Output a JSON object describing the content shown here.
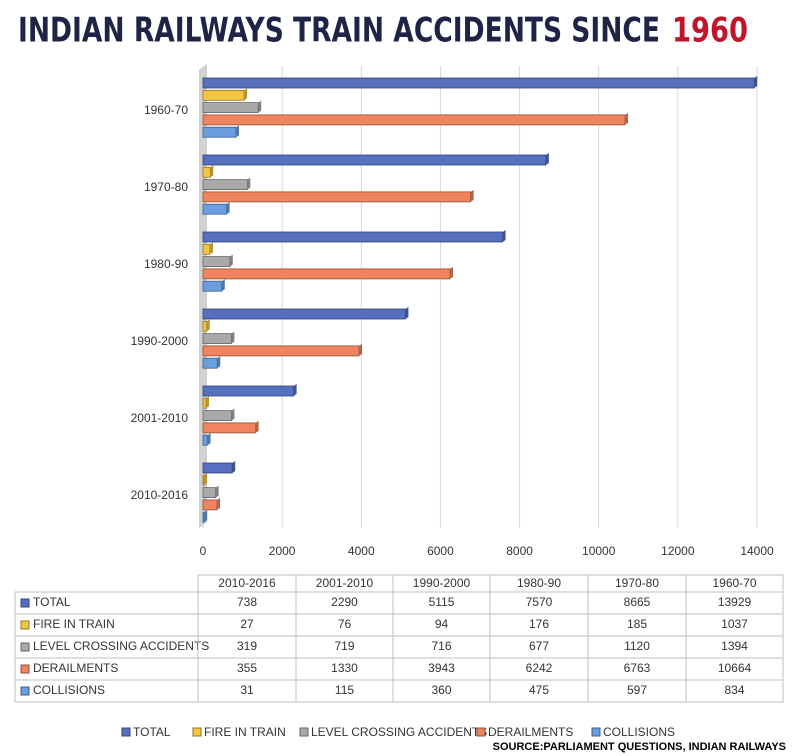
{
  "chart_data": {
    "type": "bar",
    "orientation": "horizontal",
    "title": "INDIAN RAILWAYS TRAIN ACCIDENTS SINCE",
    "title_highlight": "1960",
    "source": "SOURCE:PARLIAMENT QUESTIONS, INDIAN RAILWAYS",
    "categories": [
      "2010-2016",
      "2001-2010",
      "1990-2000",
      "1980-90",
      "1970-80",
      "1960-70"
    ],
    "series": [
      {
        "name": "TOTAL",
        "color": "#5670bf",
        "values": [
          738,
          2290,
          5115,
          7570,
          8665,
          13929
        ]
      },
      {
        "name": "FIRE IN TRAIN",
        "color": "#f4c543",
        "values": [
          27,
          76,
          94,
          176,
          185,
          1037
        ]
      },
      {
        "name": "LEVEL CROSSING ACCIDENTS",
        "color": "#a9a9a9",
        "values": [
          319,
          719,
          716,
          677,
          1120,
          1394
        ]
      },
      {
        "name": "DERAILMENTS",
        "color": "#f0845f",
        "values": [
          355,
          1330,
          3943,
          6242,
          6763,
          10664
        ]
      },
      {
        "name": "COLLISIONS",
        "color": "#6a9ee0",
        "values": [
          31,
          115,
          360,
          475,
          597,
          834
        ]
      }
    ],
    "xlim": [
      0,
      14000
    ],
    "xticks": [
      0,
      2000,
      4000,
      6000,
      8000,
      10000,
      12000,
      14000
    ],
    "grid": true
  }
}
